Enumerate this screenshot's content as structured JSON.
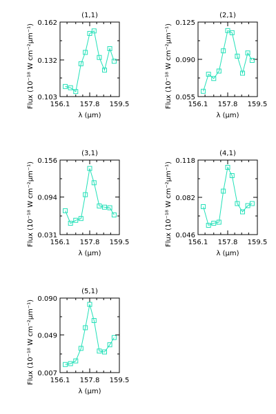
{
  "chart_data": [
    {
      "type": "line",
      "title": "(1,1)",
      "xlabel": "λ (μm)",
      "ylabel": "Flux (10⁻¹⁸ W cm⁻²μm⁻¹)",
      "xlim": [
        156.1,
        159.5
      ],
      "ylim": [
        0.103,
        0.162
      ],
      "xticks": [
        "156.1",
        "157.8",
        "159.5"
      ],
      "yticks": [
        "0.103",
        "0.132",
        "0.162"
      ],
      "x": [
        156.4,
        156.7,
        157.0,
        157.3,
        157.55,
        157.8,
        158.05,
        158.35,
        158.65,
        158.95,
        159.2
      ],
      "y": [
        0.111,
        0.11,
        0.107,
        0.129,
        0.138,
        0.153,
        0.155,
        0.134,
        0.124,
        0.141,
        0.131
      ],
      "color": "#22e0b8"
    },
    {
      "type": "line",
      "title": "(2,1)",
      "xlabel": "λ (μm)",
      "ylabel": "Flux (10⁻¹⁸ W cm⁻²μm⁻¹)",
      "xlim": [
        156.1,
        159.5
      ],
      "ylim": [
        0.055,
        0.125
      ],
      "xticks": [
        "156.1",
        "157.8",
        "159.5"
      ],
      "yticks": [
        "0.055",
        "0.090",
        "0.125"
      ],
      "x": [
        156.4,
        156.7,
        157.0,
        157.3,
        157.55,
        157.8,
        158.05,
        158.35,
        158.65,
        158.95,
        159.2
      ],
      "y": [
        0.06,
        0.076,
        0.072,
        0.079,
        0.098,
        0.117,
        0.115,
        0.093,
        0.077,
        0.096,
        0.089
      ],
      "color": "#22e0b8"
    },
    {
      "type": "line",
      "title": "(3,1)",
      "xlabel": "λ (μm)",
      "ylabel": "Flux (10⁻¹⁸ W cm⁻²μm⁻¹)",
      "xlim": [
        156.1,
        159.5
      ],
      "ylim": [
        0.031,
        0.156
      ],
      "xticks": [
        "156.1",
        "157.8",
        "159.5"
      ],
      "yticks": [
        "0.031",
        "0.094",
        "0.156"
      ],
      "x": [
        156.4,
        156.7,
        157.0,
        157.3,
        157.55,
        157.8,
        158.05,
        158.35,
        158.65,
        158.95,
        159.2
      ],
      "y": [
        0.071,
        0.05,
        0.055,
        0.058,
        0.098,
        0.142,
        0.118,
        0.079,
        0.077,
        0.076,
        0.064
      ],
      "color": "#22e0b8"
    },
    {
      "type": "line",
      "title": "(4,1)",
      "xlabel": "λ (μm)",
      "ylabel": "Flux (10⁻¹⁸ W cm⁻²μm⁻¹)",
      "xlim": [
        156.1,
        159.5
      ],
      "ylim": [
        0.046,
        0.118
      ],
      "xticks": [
        "156.1",
        "157.8",
        "159.5"
      ],
      "yticks": [
        "0.046",
        "0.082",
        "0.118"
      ],
      "x": [
        156.4,
        156.7,
        157.0,
        157.3,
        157.55,
        157.8,
        158.05,
        158.35,
        158.65,
        158.95,
        159.2
      ],
      "y": [
        0.073,
        0.055,
        0.057,
        0.058,
        0.088,
        0.111,
        0.103,
        0.076,
        0.068,
        0.074,
        0.076
      ],
      "color": "#22e0b8"
    },
    {
      "type": "line",
      "title": "(5,1)",
      "xlabel": "λ (μm)",
      "ylabel": "Flux (10⁻¹⁸ W cm⁻²μm⁻¹)",
      "xlim": [
        156.1,
        159.5
      ],
      "ylim": [
        0.007,
        0.09
      ],
      "xticks": [
        "156.1",
        "157.8",
        "159.5"
      ],
      "yticks": [
        "0.007",
        "0.049",
        "0.090"
      ],
      "x": [
        156.4,
        156.7,
        157.0,
        157.3,
        157.55,
        157.8,
        158.05,
        158.35,
        158.65,
        158.95,
        159.2
      ],
      "y": [
        0.016,
        0.017,
        0.02,
        0.034,
        0.057,
        0.083,
        0.065,
        0.031,
        0.03,
        0.038,
        0.046
      ],
      "color": "#22e0b8"
    }
  ]
}
